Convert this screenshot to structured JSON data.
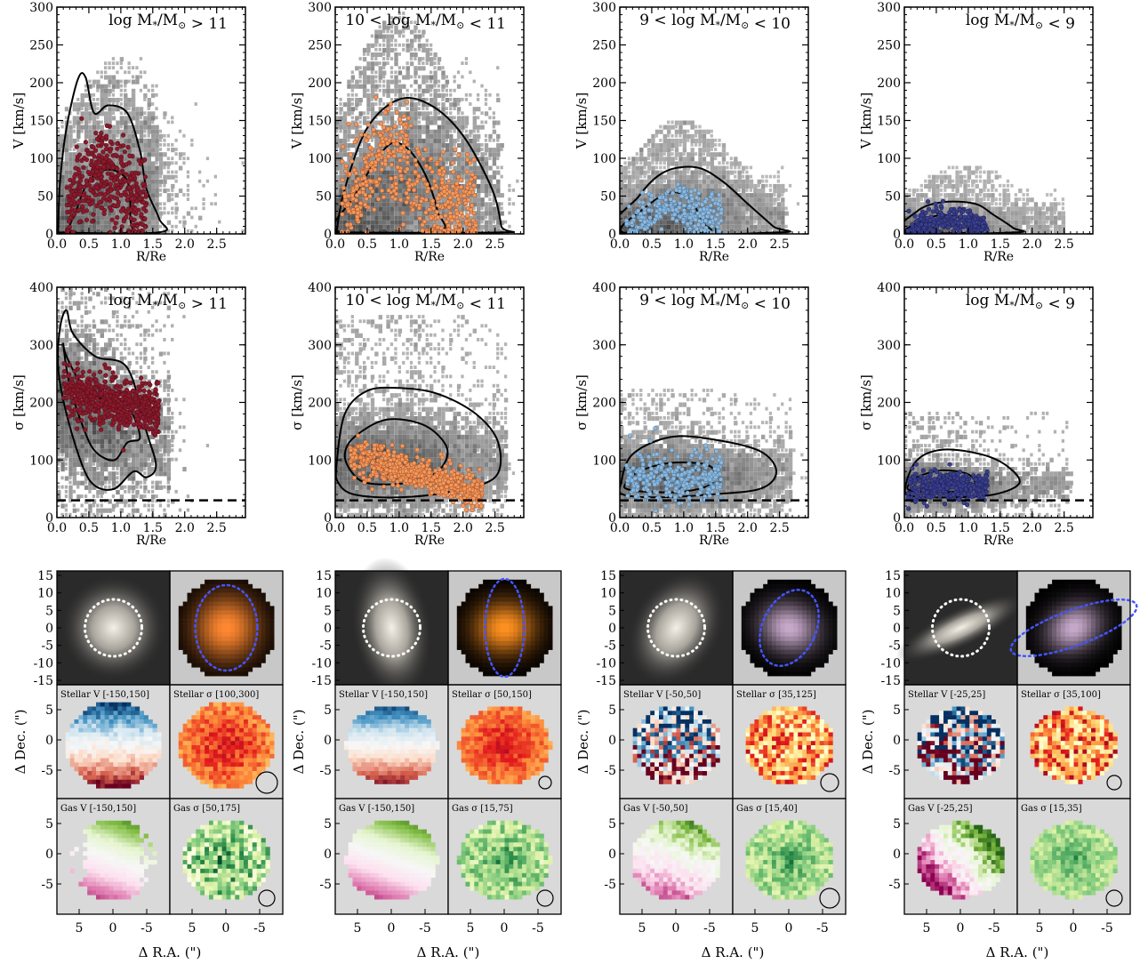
{
  "chart_data": {
    "type": "scatter",
    "mass_bins": [
      {
        "label_v": "log M*/M⊙ > 11",
        "label_s": "log M*/M⊙ > 11",
        "color": "#8b1a2b",
        "edge": "#5a0f1c"
      },
      {
        "label_v": "10 < log M*/M⊙ < 11",
        "label_s": "10 < log M*/M⊙ < 11",
        "color": "#f09a5e",
        "edge": "#b5562a"
      },
      {
        "label_v": "9 < log M*/M⊙ < 10",
        "label_s": "9 < log M*/M⊙ < 10",
        "color": "#8fb8dc",
        "edge": "#4f7fa8"
      },
      {
        "label_v": "log M*/M⊙ < 9",
        "label_s": "log M*/M⊙ < 9",
        "color": "#3a3f8a",
        "edge": "#1e2260"
      }
    ],
    "row1": {
      "ylabel": "V [km/s]",
      "xlabel": "R/Re",
      "ylim": [
        0,
        300
      ],
      "xlim": [
        0,
        2.95
      ],
      "yticks": [
        "0",
        "50",
        "100",
        "150",
        "200",
        "250",
        "300"
      ],
      "xticks": [
        "0.0",
        "0.5",
        "1.0",
        "1.5",
        "2.0",
        "2.5"
      ]
    },
    "row2": {
      "ylabel": "σ [km/s]",
      "xlabel": "R/Re",
      "ylim": [
        0,
        400
      ],
      "xlim": [
        0,
        2.95
      ],
      "yticks": [
        "0",
        "100",
        "200",
        "300",
        "400"
      ],
      "xticks": [
        "0.0",
        "0.5",
        "1.0",
        "1.5",
        "2.0",
        "2.5"
      ],
      "hline": 30
    },
    "maps": {
      "image_yticks": [
        "15",
        "10",
        "5",
        "0",
        "-5",
        "-10",
        "-15"
      ],
      "map_yticks": [
        "5",
        "0",
        "-5"
      ],
      "xticks": [
        "5",
        "0",
        "-5"
      ],
      "ylabel": "Δ Dec. (\")",
      "xlabel": "Δ R.A. (\")",
      "galaxies": [
        {
          "stellar_v": "Stellar V [-150,150]",
          "stellar_s": "Stellar σ [100,300]",
          "gas_v": "Gas V [-150,150]",
          "gas_s": "Gas σ [50,175]"
        },
        {
          "stellar_v": "Stellar V [-150,150]",
          "stellar_s": "Stellar σ [50,150]",
          "gas_v": "Gas V [-150,150]",
          "gas_s": "Gas σ [15,75]"
        },
        {
          "stellar_v": "Stellar V [-50,50]",
          "stellar_s": "Stellar σ [35,125]",
          "gas_v": "Gas V [-50,50]",
          "gas_s": "Gas σ [15,40]"
        },
        {
          "stellar_v": "Stellar V [-25,25]",
          "stellar_s": "Stellar σ [35,100]",
          "gas_v": "Gas V [-25,25]",
          "gas_s": "Gas σ [15,35]"
        }
      ]
    }
  }
}
